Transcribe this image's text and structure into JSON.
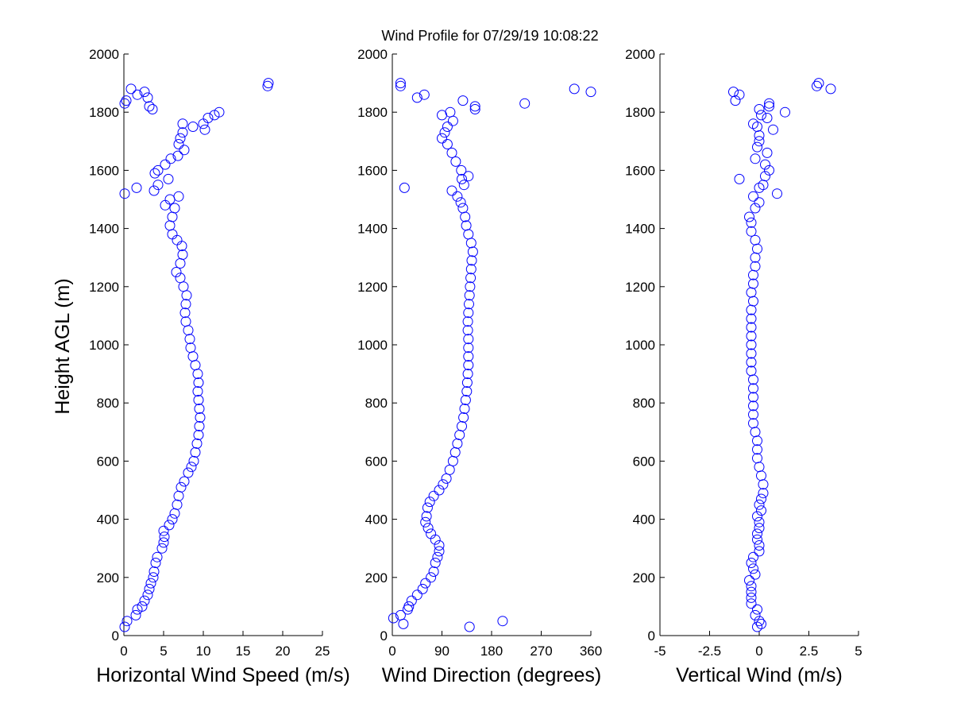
{
  "figure": {
    "title": "Wind Profile for  07/29/19 10:08:22",
    "ylabel": "Height AGL (m)"
  },
  "colors": {
    "marker": "#0000ff",
    "axis": "#000000",
    "background": "#ffffff"
  },
  "chart_data": [
    {
      "type": "scatter",
      "id": "speed",
      "xlabel": "Horizontal Wind Speed (m/s)",
      "xlim": [
        0,
        25
      ],
      "ylim": [
        0,
        2000
      ],
      "xticks": [
        0,
        5,
        10,
        15,
        20,
        25
      ],
      "xtick_labels": [
        "0",
        "5",
        "10",
        "15",
        "20",
        "25"
      ],
      "yticks": [
        0,
        200,
        400,
        600,
        800,
        1000,
        1200,
        1400,
        1600,
        1800,
        2000
      ],
      "ytick_labels": [
        "0",
        "200",
        "400",
        "600",
        "800",
        "1000",
        "1200",
        "1400",
        "1600",
        "1800",
        "2000"
      ],
      "grid": false,
      "marker": "open-circle",
      "points": [
        [
          0.1,
          30
        ],
        [
          0.4,
          50
        ],
        [
          1.5,
          70
        ],
        [
          1.7,
          90
        ],
        [
          2.3,
          100
        ],
        [
          2.6,
          120
        ],
        [
          3.0,
          140
        ],
        [
          3.2,
          160
        ],
        [
          3.4,
          180
        ],
        [
          3.7,
          200
        ],
        [
          3.8,
          220
        ],
        [
          4.0,
          250
        ],
        [
          4.2,
          270
        ],
        [
          4.8,
          300
        ],
        [
          5.0,
          320
        ],
        [
          5.1,
          340
        ],
        [
          5.0,
          360
        ],
        [
          5.7,
          380
        ],
        [
          6.1,
          400
        ],
        [
          6.4,
          420
        ],
        [
          6.7,
          450
        ],
        [
          6.9,
          480
        ],
        [
          7.2,
          510
        ],
        [
          7.6,
          530
        ],
        [
          8.1,
          560
        ],
        [
          8.5,
          580
        ],
        [
          8.8,
          600
        ],
        [
          9.0,
          630
        ],
        [
          9.2,
          660
        ],
        [
          9.4,
          690
        ],
        [
          9.5,
          720
        ],
        [
          9.6,
          750
        ],
        [
          9.5,
          780
        ],
        [
          9.4,
          810
        ],
        [
          9.3,
          840
        ],
        [
          9.4,
          870
        ],
        [
          9.3,
          900
        ],
        [
          9.0,
          930
        ],
        [
          8.7,
          960
        ],
        [
          8.4,
          990
        ],
        [
          8.3,
          1020
        ],
        [
          8.1,
          1050
        ],
        [
          7.8,
          1080
        ],
        [
          7.7,
          1110
        ],
        [
          7.8,
          1140
        ],
        [
          7.9,
          1170
        ],
        [
          7.5,
          1200
        ],
        [
          7.1,
          1230
        ],
        [
          6.6,
          1250
        ],
        [
          7.1,
          1280
        ],
        [
          7.4,
          1310
        ],
        [
          7.3,
          1340
        ],
        [
          6.7,
          1360
        ],
        [
          6.1,
          1380
        ],
        [
          5.8,
          1410
        ],
        [
          6.1,
          1440
        ],
        [
          6.4,
          1470
        ],
        [
          5.8,
          1500
        ],
        [
          5.2,
          1480
        ],
        [
          6.9,
          1510
        ],
        [
          0.1,
          1520
        ],
        [
          1.6,
          1540
        ],
        [
          3.8,
          1530
        ],
        [
          4.3,
          1550
        ],
        [
          5.6,
          1570
        ],
        [
          3.9,
          1590
        ],
        [
          4.3,
          1600
        ],
        [
          5.2,
          1620
        ],
        [
          5.9,
          1640
        ],
        [
          7.6,
          1670
        ],
        [
          6.8,
          1650
        ],
        [
          6.9,
          1690
        ],
        [
          7.1,
          1710
        ],
        [
          7.4,
          1730
        ],
        [
          7.4,
          1760
        ],
        [
          8.7,
          1750
        ],
        [
          10.2,
          1740
        ],
        [
          10.0,
          1760
        ],
        [
          10.6,
          1780
        ],
        [
          11.4,
          1790
        ],
        [
          12.0,
          1800
        ],
        [
          3.6,
          1810
        ],
        [
          3.2,
          1820
        ],
        [
          0.1,
          1830
        ],
        [
          0.3,
          1840
        ],
        [
          1.7,
          1860
        ],
        [
          2.6,
          1870
        ],
        [
          0.9,
          1880
        ],
        [
          3.0,
          1850
        ],
        [
          18.1,
          1890
        ],
        [
          18.2,
          1900
        ]
      ]
    },
    {
      "type": "scatter",
      "id": "direction",
      "xlabel": "Wind Direction (degrees)",
      "xlim": [
        0,
        360
      ],
      "ylim": [
        0,
        2000
      ],
      "xticks": [
        0,
        90,
        180,
        270,
        360
      ],
      "xtick_labels": [
        "0",
        "90",
        "180",
        "270",
        "360"
      ],
      "yticks": [
        0,
        200,
        400,
        600,
        800,
        1000,
        1200,
        1400,
        1600,
        1800,
        2000
      ],
      "ytick_labels": [
        "0",
        "200",
        "400",
        "600",
        "800",
        "1000",
        "1200",
        "1400",
        "1600",
        "1800",
        "2000"
      ],
      "grid": false,
      "marker": "open-circle",
      "points": [
        [
          140,
          30
        ],
        [
          20,
          40
        ],
        [
          200,
          50
        ],
        [
          2,
          60
        ],
        [
          15,
          70
        ],
        [
          28,
          90
        ],
        [
          30,
          100
        ],
        [
          35,
          120
        ],
        [
          45,
          140
        ],
        [
          55,
          160
        ],
        [
          60,
          180
        ],
        [
          70,
          200
        ],
        [
          75,
          220
        ],
        [
          78,
          250
        ],
        [
          82,
          270
        ],
        [
          85,
          290
        ],
        [
          85,
          310
        ],
        [
          78,
          330
        ],
        [
          70,
          350
        ],
        [
          65,
          370
        ],
        [
          60,
          390
        ],
        [
          62,
          410
        ],
        [
          64,
          440
        ],
        [
          68,
          460
        ],
        [
          75,
          480
        ],
        [
          85,
          500
        ],
        [
          92,
          520
        ],
        [
          98,
          540
        ],
        [
          104,
          570
        ],
        [
          110,
          600
        ],
        [
          114,
          630
        ],
        [
          118,
          660
        ],
        [
          122,
          690
        ],
        [
          126,
          720
        ],
        [
          129,
          750
        ],
        [
          131,
          780
        ],
        [
          133,
          810
        ],
        [
          135,
          840
        ],
        [
          136,
          870
        ],
        [
          137,
          900
        ],
        [
          138,
          930
        ],
        [
          138,
          960
        ],
        [
          138,
          990
        ],
        [
          138,
          1020
        ],
        [
          137,
          1050
        ],
        [
          137,
          1080
        ],
        [
          138,
          1110
        ],
        [
          139,
          1140
        ],
        [
          140,
          1170
        ],
        [
          141,
          1200
        ],
        [
          142,
          1230
        ],
        [
          143,
          1260
        ],
        [
          144,
          1290
        ],
        [
          146,
          1320
        ],
        [
          143,
          1350
        ],
        [
          138,
          1380
        ],
        [
          134,
          1410
        ],
        [
          132,
          1440
        ],
        [
          128,
          1470
        ],
        [
          124,
          1490
        ],
        [
          118,
          1510
        ],
        [
          108,
          1530
        ],
        [
          22,
          1540
        ],
        [
          130,
          1550
        ],
        [
          126,
          1570
        ],
        [
          138,
          1580
        ],
        [
          125,
          1600
        ],
        [
          115,
          1630
        ],
        [
          108,
          1660
        ],
        [
          100,
          1690
        ],
        [
          90,
          1710
        ],
        [
          95,
          1730
        ],
        [
          100,
          1750
        ],
        [
          110,
          1770
        ],
        [
          90,
          1790
        ],
        [
          105,
          1800
        ],
        [
          150,
          1810
        ],
        [
          150,
          1820
        ],
        [
          240,
          1830
        ],
        [
          128,
          1840
        ],
        [
          45,
          1850
        ],
        [
          58,
          1860
        ],
        [
          330,
          1880
        ],
        [
          360,
          1870
        ],
        [
          15,
          1890
        ],
        [
          15,
          1900
        ]
      ]
    },
    {
      "type": "scatter",
      "id": "vertical",
      "xlabel": "Vertical Wind (m/s)",
      "xlim": [
        -5,
        5
      ],
      "ylim": [
        0,
        2000
      ],
      "xticks": [
        -5,
        -2.5,
        0,
        2.5,
        5
      ],
      "xtick_labels": [
        "-5",
        "-2.5",
        "0",
        "2.5",
        "5"
      ],
      "yticks": [
        0,
        200,
        400,
        600,
        800,
        1000,
        1200,
        1400,
        1600,
        1800,
        2000
      ],
      "ytick_labels": [
        "0",
        "200",
        "400",
        "600",
        "800",
        "1000",
        "1200",
        "1400",
        "1600",
        "1800",
        "2000"
      ],
      "grid": false,
      "marker": "open-circle",
      "points": [
        [
          -0.1,
          30
        ],
        [
          0.1,
          40
        ],
        [
          0.0,
          50
        ],
        [
          -0.2,
          70
        ],
        [
          -0.1,
          90
        ],
        [
          -0.4,
          110
        ],
        [
          -0.4,
          130
        ],
        [
          -0.4,
          150
        ],
        [
          -0.4,
          170
        ],
        [
          -0.5,
          190
        ],
        [
          -0.2,
          210
        ],
        [
          -0.3,
          230
        ],
        [
          -0.4,
          250
        ],
        [
          -0.3,
          270
        ],
        [
          0.0,
          290
        ],
        [
          0.0,
          310
        ],
        [
          -0.1,
          330
        ],
        [
          -0.1,
          350
        ],
        [
          0.0,
          370
        ],
        [
          0.0,
          390
        ],
        [
          -0.1,
          410
        ],
        [
          0.1,
          430
        ],
        [
          0.0,
          450
        ],
        [
          0.1,
          470
        ],
        [
          0.2,
          490
        ],
        [
          0.2,
          520
        ],
        [
          0.1,
          550
        ],
        [
          0.0,
          580
        ],
        [
          -0.1,
          610
        ],
        [
          -0.1,
          640
        ],
        [
          -0.1,
          670
        ],
        [
          -0.2,
          700
        ],
        [
          -0.3,
          730
        ],
        [
          -0.3,
          760
        ],
        [
          -0.3,
          790
        ],
        [
          -0.3,
          820
        ],
        [
          -0.3,
          850
        ],
        [
          -0.3,
          880
        ],
        [
          -0.4,
          910
        ],
        [
          -0.4,
          940
        ],
        [
          -0.4,
          970
        ],
        [
          -0.4,
          1000
        ],
        [
          -0.4,
          1030
        ],
        [
          -0.4,
          1060
        ],
        [
          -0.4,
          1090
        ],
        [
          -0.4,
          1120
        ],
        [
          -0.3,
          1150
        ],
        [
          -0.4,
          1180
        ],
        [
          -0.3,
          1210
        ],
        [
          -0.3,
          1240
        ],
        [
          -0.2,
          1270
        ],
        [
          -0.2,
          1300
        ],
        [
          -0.1,
          1330
        ],
        [
          -0.2,
          1360
        ],
        [
          -0.4,
          1390
        ],
        [
          -0.4,
          1420
        ],
        [
          -0.5,
          1440
        ],
        [
          -0.2,
          1470
        ],
        [
          0.0,
          1490
        ],
        [
          -0.3,
          1510
        ],
        [
          0.9,
          1520
        ],
        [
          0.0,
          1540
        ],
        [
          0.2,
          1550
        ],
        [
          -1.0,
          1570
        ],
        [
          0.3,
          1580
        ],
        [
          0.5,
          1600
        ],
        [
          0.3,
          1620
        ],
        [
          -0.2,
          1640
        ],
        [
          0.4,
          1660
        ],
        [
          -0.1,
          1680
        ],
        [
          0.0,
          1700
        ],
        [
          0.0,
          1720
        ],
        [
          0.7,
          1740
        ],
        [
          -0.1,
          1750
        ],
        [
          -0.3,
          1760
        ],
        [
          0.4,
          1780
        ],
        [
          0.1,
          1790
        ],
        [
          1.3,
          1800
        ],
        [
          0.0,
          1810
        ],
        [
          0.5,
          1820
        ],
        [
          0.5,
          1830
        ],
        [
          -1.2,
          1840
        ],
        [
          -1.0,
          1860
        ],
        [
          -1.3,
          1870
        ],
        [
          2.9,
          1890
        ],
        [
          3.6,
          1880
        ],
        [
          3.0,
          1900
        ]
      ]
    }
  ]
}
